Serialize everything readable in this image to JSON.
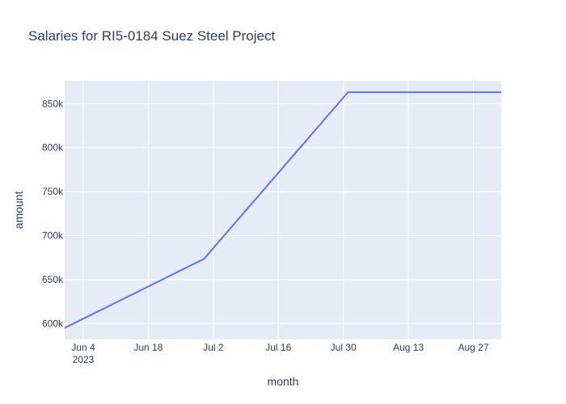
{
  "chart_data": {
    "type": "line",
    "title": "Salaries for RI5-0184 Suez Steel Project",
    "xlabel": "month",
    "ylabel": "amount",
    "x_type": "date",
    "xlim": [
      "2023-05-31",
      "2023-09-02"
    ],
    "ylim": [
      582000,
      876000
    ],
    "x_ticks": [
      {
        "date": "2023-06-04",
        "label": "Jun 4",
        "sublabel": "2023"
      },
      {
        "date": "2023-06-18",
        "label": "Jun 18"
      },
      {
        "date": "2023-07-02",
        "label": "Jul 2"
      },
      {
        "date": "2023-07-16",
        "label": "Jul 16"
      },
      {
        "date": "2023-07-30",
        "label": "Jul 30"
      },
      {
        "date": "2023-08-13",
        "label": "Aug 13"
      },
      {
        "date": "2023-08-27",
        "label": "Aug 27"
      }
    ],
    "y_ticks": [
      {
        "value": 600000,
        "label": "600k"
      },
      {
        "value": 650000,
        "label": "650k"
      },
      {
        "value": 700000,
        "label": "700k"
      },
      {
        "value": 750000,
        "label": "750k"
      },
      {
        "value": 800000,
        "label": "800k"
      },
      {
        "value": 850000,
        "label": "850k"
      }
    ],
    "series": [
      {
        "x": [
          "2023-05-31",
          "2023-06-30",
          "2023-07-31",
          "2023-09-02"
        ],
        "y": [
          595000,
          673500,
          863000,
          863000
        ],
        "color": "#636efa"
      }
    ],
    "grid": true,
    "plot_bgcolor": "#e5ecf6",
    "grid_color": "#ffffff"
  }
}
